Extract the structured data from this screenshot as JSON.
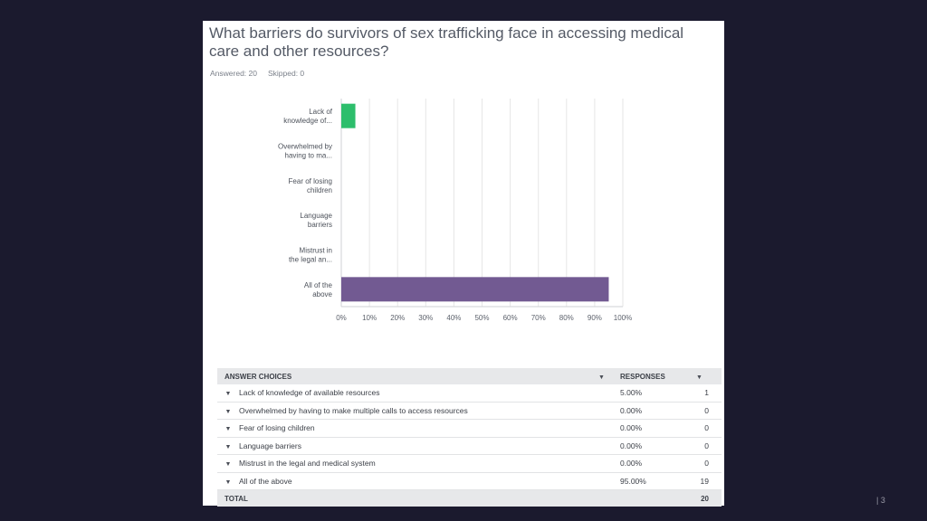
{
  "question": {
    "title": "What barriers do survivors of sex trafficking face in accessing medical care and other resources?",
    "answered_label": "Answered: 20",
    "skipped_label": "Skipped: 0"
  },
  "chart_data": {
    "type": "bar",
    "orientation": "horizontal",
    "categories": [
      [
        "Lack of",
        "knowledge of..."
      ],
      [
        "Overwhelmed by",
        "having to ma..."
      ],
      [
        "Fear of losing",
        "children"
      ],
      [
        "Language",
        "barriers"
      ],
      [
        "Mistrust in",
        "the legal an..."
      ],
      [
        "All of the",
        "above"
      ]
    ],
    "values": [
      5,
      0,
      0,
      0,
      0,
      95
    ],
    "bar_colors": [
      "#2dbe6c",
      "#6b4f9a",
      "#6b4f9a",
      "#6b4f9a",
      "#6b4f9a",
      "#725a92"
    ],
    "xlim": [
      0,
      100
    ],
    "xticks": [
      0,
      10,
      20,
      30,
      40,
      50,
      60,
      70,
      80,
      90,
      100
    ],
    "xtick_labels": [
      "0%",
      "10%",
      "20%",
      "30%",
      "40%",
      "50%",
      "60%",
      "70%",
      "80%",
      "90%",
      "100%"
    ],
    "grid": true
  },
  "table": {
    "headers": {
      "choices": "ANSWER CHOICES",
      "responses": "RESPONSES"
    },
    "rows": [
      {
        "choice": "Lack of knowledge of available resources",
        "percent": "5.00%",
        "count": "1"
      },
      {
        "choice": "Overwhelmed by having to make multiple calls to access resources",
        "percent": "0.00%",
        "count": "0"
      },
      {
        "choice": "Fear of losing children",
        "percent": "0.00%",
        "count": "0"
      },
      {
        "choice": "Language barriers",
        "percent": "0.00%",
        "count": "0"
      },
      {
        "choice": "Mistrust in the legal and medical system",
        "percent": "0.00%",
        "count": "0"
      },
      {
        "choice": "All of the above",
        "percent": "95.00%",
        "count": "19"
      }
    ],
    "total_label": "TOTAL",
    "total_count": "20"
  },
  "page_number": "| 3",
  "colors": {
    "background": "#1b1a2e",
    "card": "#ffffff",
    "grid": "#e6e6e6",
    "axis": "#cfd1d4"
  }
}
